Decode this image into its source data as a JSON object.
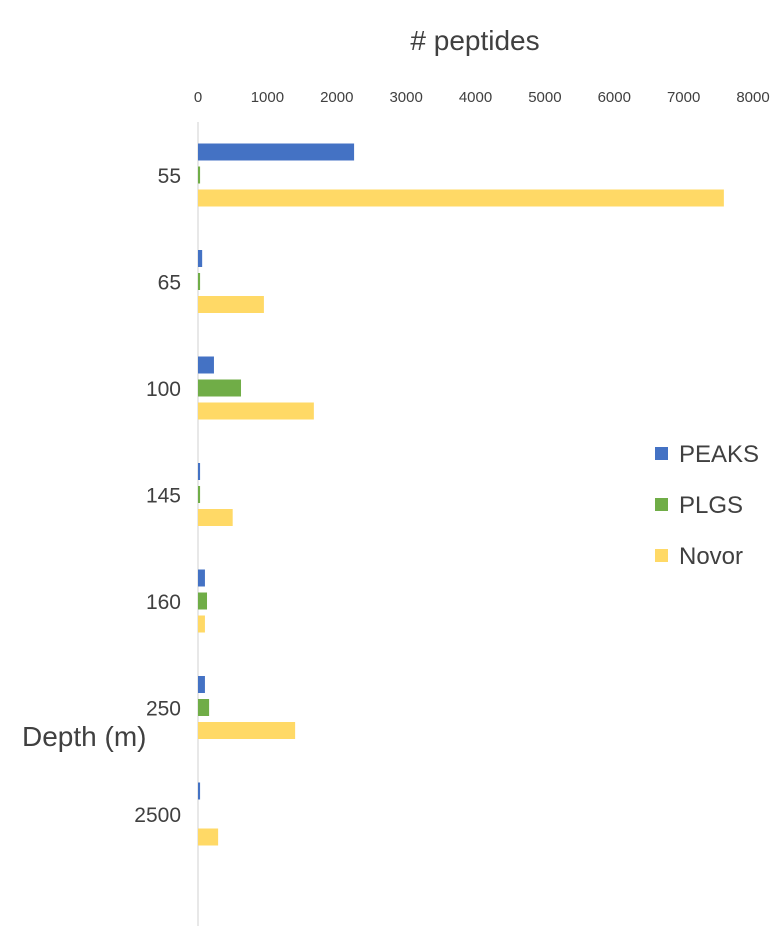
{
  "chart_data": {
    "type": "bar",
    "orientation": "horizontal",
    "title": "",
    "xlabel": "# peptides",
    "ylabel": "Depth (m)",
    "xlim": [
      0,
      8000
    ],
    "x_ticks": [
      "0",
      "1000",
      "2000",
      "3000",
      "4000",
      "5000",
      "6000",
      "7000",
      "8000"
    ],
    "x_tick_values": [
      0,
      1000,
      2000,
      3000,
      4000,
      5000,
      6000,
      7000,
      8000
    ],
    "x_axis_position": "top",
    "grid": false,
    "categories": [
      "55",
      "65",
      "100",
      "145",
      "160",
      "250",
      "2500"
    ],
    "series": [
      {
        "name": "PEAKS",
        "color": "#4472C4",
        "values": [
          2250,
          60,
          230,
          30,
          100,
          100,
          30
        ]
      },
      {
        "name": "PLGS",
        "color": "#70AD47",
        "values": [
          30,
          30,
          620,
          30,
          130,
          160,
          0
        ]
      },
      {
        "name": "Novor",
        "color": "#FFD966",
        "values": [
          7580,
          950,
          1670,
          500,
          100,
          1400,
          290
        ]
      }
    ],
    "legend_position": "right"
  }
}
